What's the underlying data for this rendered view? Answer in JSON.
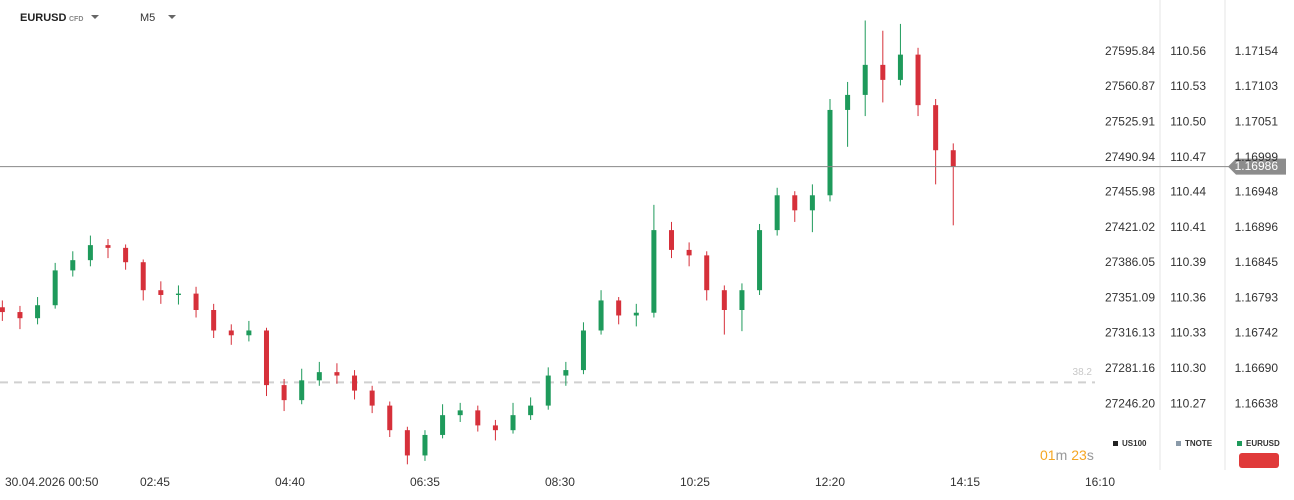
{
  "chart_data": {
    "type": "candlestick",
    "symbol": "EURUSD",
    "instrument_type": "CFD",
    "timeframe": "M5",
    "up_color": "#1e9a5b",
    "down_color": "#d6303a",
    "x": [
      "00:35",
      "00:50",
      "01:05",
      "01:20",
      "01:35",
      "01:50",
      "02:05",
      "02:20",
      "02:35",
      "02:50",
      "03:05",
      "03:20",
      "03:35",
      "03:50",
      "04:05",
      "04:20",
      "04:35",
      "04:50",
      "05:05",
      "05:20",
      "05:35",
      "05:50",
      "06:05",
      "06:20",
      "06:35",
      "06:50",
      "07:05",
      "07:20",
      "07:35",
      "07:50",
      "08:05",
      "08:20",
      "08:35",
      "08:50",
      "09:05",
      "09:20",
      "09:35",
      "09:50",
      "10:05",
      "10:20",
      "10:35",
      "10:50",
      "11:05",
      "11:20",
      "11:35",
      "11:50",
      "12:05",
      "12:20",
      "12:35",
      "12:50",
      "13:05",
      "13:20",
      "13:35",
      "13:50",
      "14:05"
    ],
    "open": [
      1.1678,
      1.16773,
      1.16764,
      1.16783,
      1.16834,
      1.16849,
      1.16871,
      1.16867,
      1.16846,
      1.16805,
      1.16798,
      1.168,
      1.16776,
      1.16746,
      1.16739,
      1.16746,
      1.16666,
      1.16644,
      1.16673,
      1.16685,
      1.1668,
      1.16658,
      1.16636,
      1.166,
      1.16563,
      1.16593,
      1.16622,
      1.16629,
      1.16607,
      1.166,
      1.16622,
      1.16636,
      1.1668,
      1.16688,
      1.16746,
      1.1679,
      1.16768,
      1.16772,
      1.16893,
      1.16864,
      1.16856,
      1.16805,
      1.16776,
      1.16805,
      1.16893,
      1.16944,
      1.16922,
      1.16944,
      1.17069,
      1.17091,
      1.17135,
      1.17113,
      1.1715,
      1.17076,
      1.1701
    ],
    "high": [
      1.1679,
      1.16782,
      1.16795,
      1.16845,
      1.16862,
      1.16885,
      1.1688,
      1.16872,
      1.1685,
      1.16818,
      1.16812,
      1.1681,
      1.16785,
      1.16755,
      1.1676,
      1.1675,
      1.16675,
      1.1669,
      1.167,
      1.16698,
      1.16688,
      1.16665,
      1.16642,
      1.16605,
      1.166,
      1.16638,
      1.1664,
      1.16636,
      1.16615,
      1.1664,
      1.16648,
      1.16692,
      1.167,
      1.16758,
      1.16805,
      1.16795,
      1.16785,
      1.1693,
      1.16905,
      1.16875,
      1.16862,
      1.16812,
      1.16815,
      1.16902,
      1.16955,
      1.1695,
      1.1696,
      1.17085,
      1.1711,
      1.172,
      1.17185,
      1.17195,
      1.1716,
      1.17085,
      1.1702
    ],
    "low": [
      1.1676,
      1.16748,
      1.16755,
      1.16778,
      1.16825,
      1.1684,
      1.16852,
      1.16835,
      1.1679,
      1.16785,
      1.16784,
      1.16765,
      1.16735,
      1.16725,
      1.1673,
      1.1665,
      1.16628,
      1.16638,
      1.16665,
      1.16668,
      1.16645,
      1.16625,
      1.1659,
      1.1655,
      1.16555,
      1.16588,
      1.16612,
      1.16598,
      1.16585,
      1.16595,
      1.16615,
      1.1663,
      1.16665,
      1.16682,
      1.1674,
      1.16755,
      1.16752,
      1.16765,
      1.16852,
      1.1684,
      1.1679,
      1.1674,
      1.16745,
      1.16798,
      1.16885,
      1.16905,
      1.1689,
      1.16935,
      1.17015,
      1.1706,
      1.1708,
      1.17105,
      1.1706,
      1.1696,
      1.169
    ],
    "close": [
      1.16773,
      1.16764,
      1.16783,
      1.16834,
      1.16849,
      1.16871,
      1.16867,
      1.16846,
      1.16805,
      1.16798,
      1.168,
      1.16776,
      1.16746,
      1.16739,
      1.16746,
      1.16666,
      1.16644,
      1.16673,
      1.16685,
      1.1668,
      1.16658,
      1.16636,
      1.166,
      1.16563,
      1.16593,
      1.16622,
      1.16629,
      1.16607,
      1.166,
      1.16622,
      1.16636,
      1.1668,
      1.16688,
      1.16746,
      1.1679,
      1.16768,
      1.16772,
      1.16893,
      1.16864,
      1.16856,
      1.16805,
      1.16776,
      1.16805,
      1.16893,
      1.16944,
      1.16922,
      1.16944,
      1.17069,
      1.17091,
      1.17135,
      1.17113,
      1.1715,
      1.17076,
      1.1701,
      1.16986
    ],
    "xlim": [
      "00:33",
      "16:10"
    ],
    "xticks": [
      {
        "value": "00:50",
        "label": "30.04.2026 00:50"
      },
      "02:45",
      "04:40",
      "06:35",
      "08:30",
      "10:25",
      "12:20",
      "14:15",
      "16:10"
    ],
    "ylim": [
      1.16549,
      1.1723
    ],
    "yticks": [
      1.17154,
      1.17103,
      1.17051,
      1.16999,
      1.16948,
      1.16896,
      1.16845,
      1.16793,
      1.16742,
      {
        "value": 1.1669,
        "label": "1.16690"
      },
      1.16638
    ],
    "current_price": 1.16986,
    "fib": {
      "level": 38.2,
      "price": 1.1667
    },
    "other_axes": [
      {
        "name": "US100",
        "color": "#222222",
        "ticks": [
          27595.84,
          27560.87,
          27525.91,
          27490.94,
          27455.98,
          27421.02,
          27386.05,
          27351.09,
          27316.13,
          27281.16,
          {
            "value": 27246.2,
            "label": "27246.20"
          }
        ]
      },
      {
        "name": "TNOTE",
        "color": "#8a9aa9",
        "ticks": [
          110.56,
          110.53,
          {
            "value": 110.5,
            "label": "110.50"
          },
          110.47,
          110.44,
          110.41,
          110.39,
          110.36,
          110.33,
          {
            "value": 110.3,
            "label": "110.30"
          },
          110.27
        ]
      }
    ],
    "symbol_color": "#1e9a5b",
    "countdown": {
      "minutes": "01",
      "minutes_unit": "m",
      "seconds": "23",
      "seconds_unit": "s"
    }
  }
}
